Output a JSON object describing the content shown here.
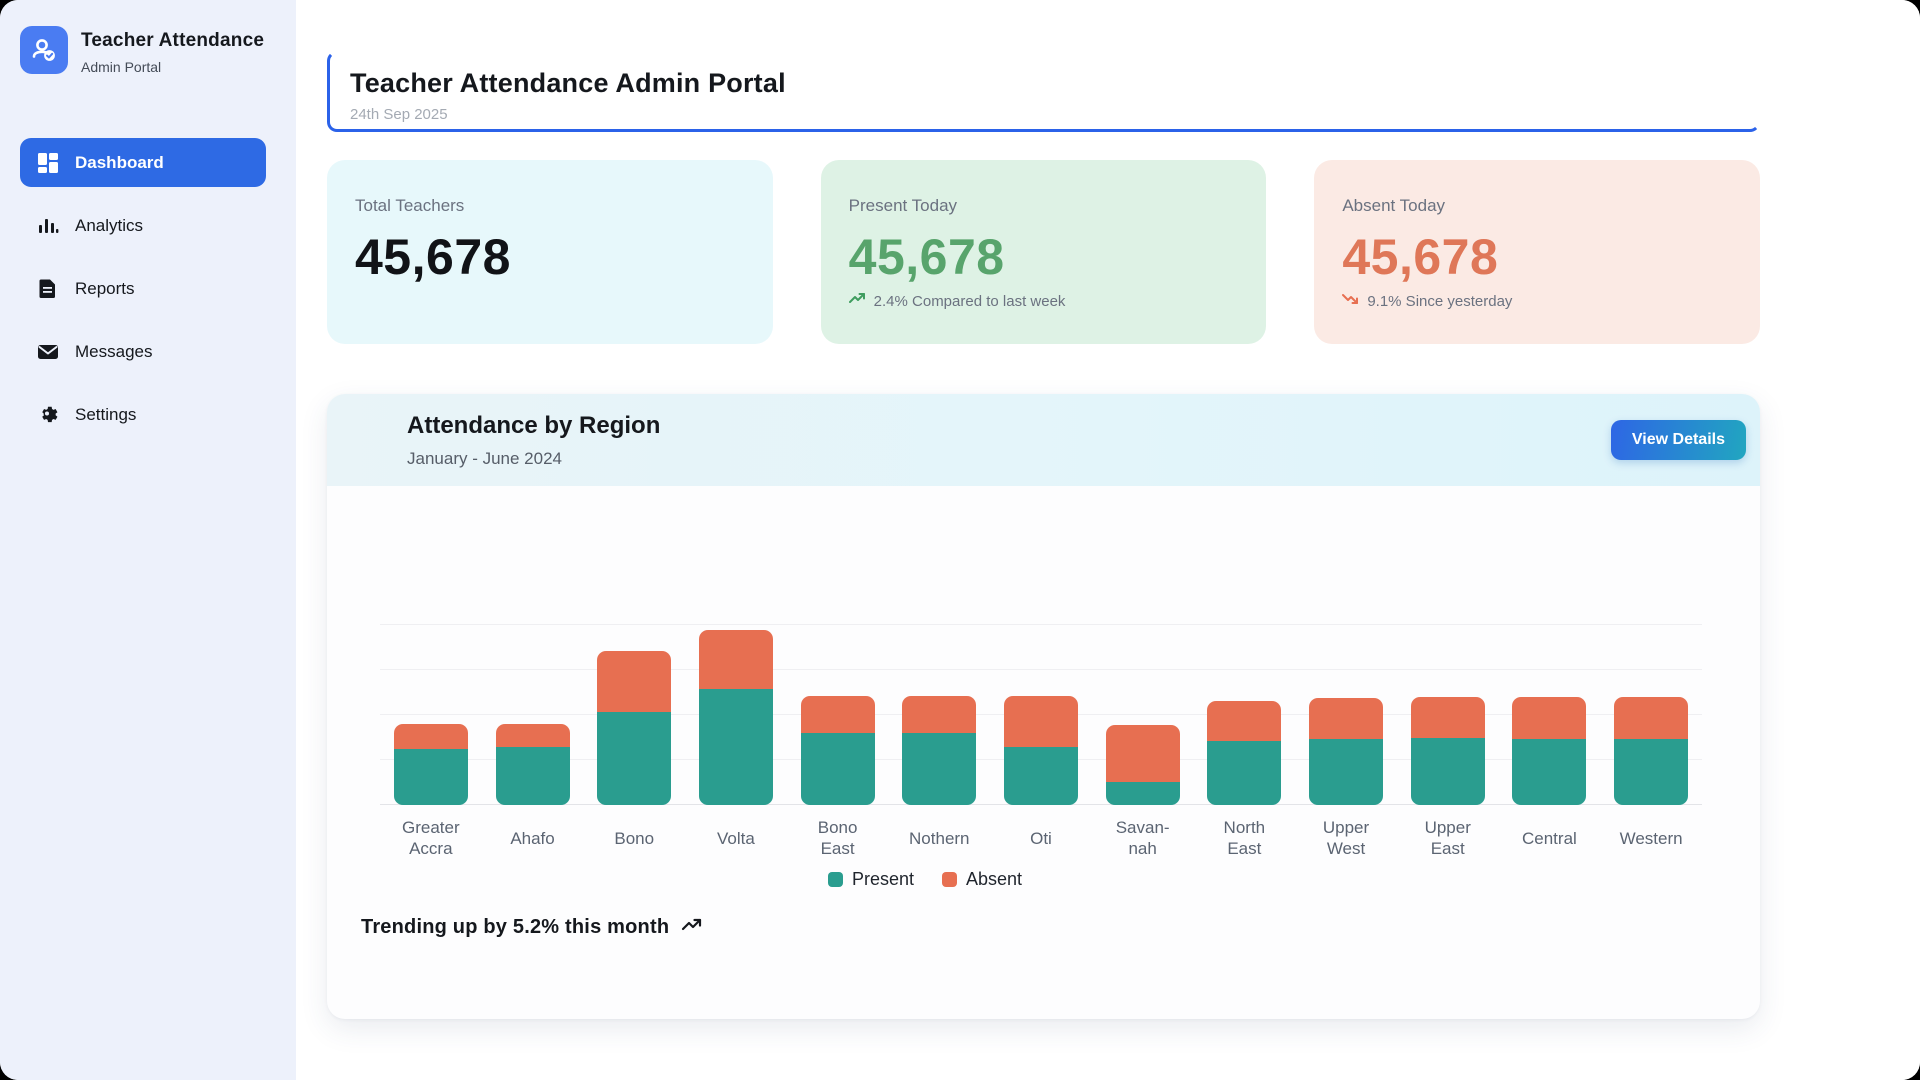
{
  "sidebar": {
    "brand": {
      "title": "Teacher Attendance",
      "subtitle": "Admin Portal",
      "logo_icon": "person-check-icon"
    },
    "items": [
      {
        "label": "Dashboard",
        "icon": "dashboard-grid-icon",
        "active": true
      },
      {
        "label": "Analytics",
        "icon": "bar-chart-icon",
        "active": false
      },
      {
        "label": "Reports",
        "icon": "document-icon",
        "active": false
      },
      {
        "label": "Messages",
        "icon": "envelope-icon",
        "active": false
      },
      {
        "label": "Settings",
        "icon": "gear-icon",
        "active": false
      }
    ]
  },
  "header": {
    "title": "Teacher Attendance Admin Portal",
    "date": "24th Sep 2025"
  },
  "stats": {
    "total": {
      "label": "Total Teachers",
      "value": "45,678"
    },
    "present": {
      "label": "Present Today",
      "value": "45,678",
      "note": "2.4% Compared to last week",
      "trend": "up"
    },
    "absent": {
      "label": "Absent Today",
      "value": "45,678",
      "note": "9.1% Since yesterday",
      "trend": "down"
    }
  },
  "attendance_card": {
    "title": "Attendance by Region",
    "subtitle": "January - June 2024",
    "view_details_label": "View Details",
    "footer": "Trending up by 5.2% this month"
  },
  "chart_data": {
    "type": "bar",
    "stacked": true,
    "title": "Attendance by Region",
    "xlabel": "",
    "ylabel": "",
    "categories": [
      "Greater\nAccra",
      "Ahafo",
      "Bono",
      "Volta",
      "Bono\nEast",
      "Nothern",
      "Oti",
      "Savan-\nnah",
      "North\nEast",
      "Upper\nWest",
      "Upper\nEast",
      "Central",
      "Western"
    ],
    "series": [
      {
        "name": "Present",
        "color": "#2a9d8f",
        "values": [
          62,
          64,
          103,
          129,
          80,
          80,
          65,
          26,
          71,
          73,
          74,
          73,
          73
        ]
      },
      {
        "name": "Absent",
        "color": "#e76f51",
        "values": [
          28,
          26,
          68,
          65,
          41,
          41,
          56,
          63,
          45,
          46,
          46,
          47,
          47
        ]
      }
    ],
    "ylim": [
      0,
      200
    ],
    "grid_step": 50,
    "grid": true,
    "legend_position": "bottom"
  },
  "colors": {
    "accent_blue": "#2e6ae4",
    "present": "#2a9d8f",
    "absent": "#e76f51",
    "positive_trend": "#3f9d5f",
    "negative_trend": "#e76f51"
  }
}
